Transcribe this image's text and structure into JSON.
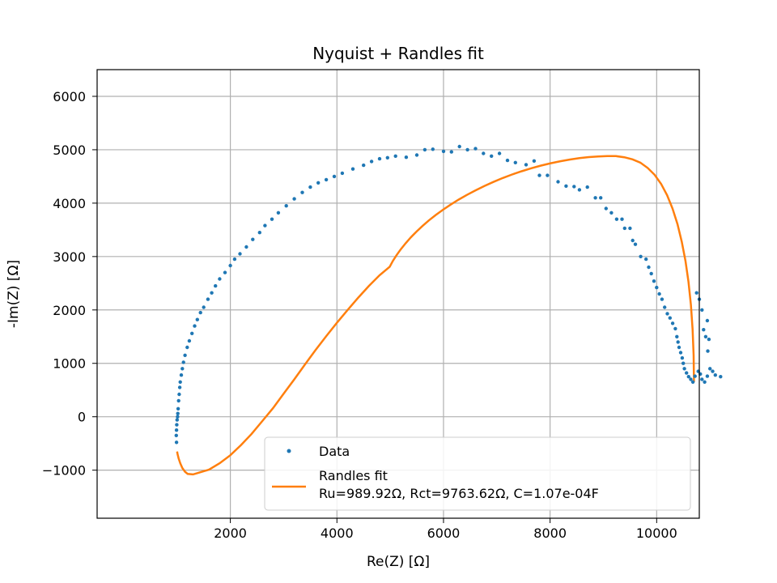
{
  "chart_data": {
    "type": "scatter",
    "title": "Nyquist + Randles fit",
    "xlabel": "Re(Z) [Ω]",
    "ylabel": "-Im(Z) [Ω]",
    "xlim": [
      -500,
      10800
    ],
    "ylim": [
      -1900,
      6500
    ],
    "xticks": [
      2000,
      4000,
      6000,
      8000,
      10000
    ],
    "yticks": [
      -1000,
      0,
      1000,
      2000,
      3000,
      4000,
      5000,
      6000
    ],
    "grid": true,
    "legend_position": "lower right",
    "series": [
      {
        "name": "Data",
        "kind": "scatter",
        "color": "#1f77b4",
        "points": [
          [
            990,
            -480
          ],
          [
            985,
            -350
          ],
          [
            990,
            -250
          ],
          [
            995,
            -150
          ],
          [
            1000,
            -60
          ],
          [
            1010,
            0
          ],
          [
            1015,
            60
          ],
          [
            1020,
            150
          ],
          [
            1030,
            300
          ],
          [
            1040,
            420
          ],
          [
            1050,
            550
          ],
          [
            1060,
            650
          ],
          [
            1080,
            780
          ],
          [
            1100,
            900
          ],
          [
            1120,
            1020
          ],
          [
            1150,
            1150
          ],
          [
            1190,
            1300
          ],
          [
            1230,
            1420
          ],
          [
            1280,
            1560
          ],
          [
            1330,
            1700
          ],
          [
            1380,
            1820
          ],
          [
            1440,
            1950
          ],
          [
            1500,
            2050
          ],
          [
            1580,
            2200
          ],
          [
            1650,
            2320
          ],
          [
            1720,
            2450
          ],
          [
            1800,
            2580
          ],
          [
            1900,
            2700
          ],
          [
            2000,
            2830
          ],
          [
            2080,
            2950
          ],
          [
            2180,
            3050
          ],
          [
            2300,
            3180
          ],
          [
            2420,
            3320
          ],
          [
            2550,
            3450
          ],
          [
            2650,
            3580
          ],
          [
            2780,
            3700
          ],
          [
            2900,
            3820
          ],
          [
            3050,
            3950
          ],
          [
            3200,
            4080
          ],
          [
            3350,
            4200
          ],
          [
            3500,
            4300
          ],
          [
            3650,
            4380
          ],
          [
            3800,
            4440
          ],
          [
            3950,
            4500
          ],
          [
            4100,
            4560
          ],
          [
            4300,
            4640
          ],
          [
            4500,
            4710
          ],
          [
            4650,
            4780
          ],
          [
            4800,
            4830
          ],
          [
            4950,
            4850
          ],
          [
            5100,
            4880
          ],
          [
            5300,
            4860
          ],
          [
            5500,
            4900
          ],
          [
            5650,
            5000
          ],
          [
            5800,
            5010
          ],
          [
            6000,
            4970
          ],
          [
            6150,
            4960
          ],
          [
            6300,
            5060
          ],
          [
            6450,
            5000
          ],
          [
            6600,
            5020
          ],
          [
            6750,
            4930
          ],
          [
            6900,
            4880
          ],
          [
            7050,
            4930
          ],
          [
            7200,
            4800
          ],
          [
            7350,
            4760
          ],
          [
            7550,
            4720
          ],
          [
            7700,
            4790
          ],
          [
            7800,
            4520
          ],
          [
            7950,
            4520
          ],
          [
            8150,
            4400
          ],
          [
            8300,
            4320
          ],
          [
            8450,
            4310
          ],
          [
            8550,
            4250
          ],
          [
            8700,
            4300
          ],
          [
            8850,
            4100
          ],
          [
            8950,
            4100
          ],
          [
            9050,
            3900
          ],
          [
            9150,
            3820
          ],
          [
            9250,
            3700
          ],
          [
            9350,
            3700
          ],
          [
            9400,
            3530
          ],
          [
            9500,
            3530
          ],
          [
            9550,
            3300
          ],
          [
            9600,
            3230
          ],
          [
            9700,
            3000
          ],
          [
            9800,
            2950
          ],
          [
            9850,
            2800
          ],
          [
            9900,
            2680
          ],
          [
            9950,
            2540
          ],
          [
            10000,
            2420
          ],
          [
            10050,
            2300
          ],
          [
            10100,
            2200
          ],
          [
            10150,
            2050
          ],
          [
            10200,
            1930
          ],
          [
            10250,
            1850
          ],
          [
            10300,
            1750
          ],
          [
            10350,
            1650
          ],
          [
            10380,
            1500
          ],
          [
            10400,
            1400
          ],
          [
            10420,
            1300
          ],
          [
            10450,
            1200
          ],
          [
            10480,
            1100
          ],
          [
            10500,
            1000
          ],
          [
            10520,
            900
          ],
          [
            10560,
            820
          ],
          [
            10600,
            750
          ],
          [
            10640,
            700
          ],
          [
            10680,
            650
          ],
          [
            10720,
            760
          ],
          [
            10780,
            850
          ],
          [
            10820,
            800
          ],
          [
            10850,
            700
          ],
          [
            10900,
            650
          ],
          [
            10950,
            760
          ],
          [
            11000,
            900
          ],
          [
            11050,
            850
          ],
          [
            11100,
            780
          ],
          [
            11200,
            750
          ],
          [
            10960,
            1230
          ],
          [
            10980,
            1450
          ],
          [
            10920,
            1500
          ],
          [
            10880,
            1630
          ],
          [
            10950,
            1800
          ],
          [
            10850,
            2000
          ],
          [
            10800,
            2200
          ],
          [
            10750,
            2320
          ]
        ]
      },
      {
        "name": "Randles fit",
        "legend_line2": "Ru=989.92Ω, Rct=9763.62Ω, C=1.07e-04F",
        "kind": "line",
        "color": "#ff7f0e",
        "Ru": 989.92,
        "Rct": 9763.62,
        "x": [
          10700,
          10693,
          10674,
          10642,
          10597,
          10540,
          10470,
          10390,
          10298,
          10195,
          10083,
          9962,
          9831,
          9693,
          9547,
          9394,
          9235,
          9071,
          8902,
          8729,
          8552,
          8374,
          8193,
          8011,
          7829,
          7647,
          7466,
          7287,
          7110,
          6936,
          6766,
          6600,
          6439,
          6284,
          6134,
          5991,
          5855,
          5726,
          5605,
          5491,
          5386,
          5289,
          5200,
          5121,
          5050,
          4990,
          4800,
          4600,
          4400,
          4200,
          4000,
          3800,
          3600,
          3400,
          3200,
          3000,
          2800,
          2600,
          2400,
          2200,
          2000,
          1800,
          1600,
          1400,
          1300,
          1200,
          1150,
          1100,
          1060,
          1030,
          1010,
          1000
        ],
        "y": [
          650,
          1150,
          1640,
          2100,
          2530,
          2920,
          3280,
          3610,
          3900,
          4150,
          4360,
          4530,
          4660,
          4760,
          4820,
          4860,
          4880,
          4881,
          4875,
          4862,
          4843,
          4817,
          4785,
          4747,
          4703,
          4653,
          4597,
          4536,
          4469,
          4397,
          4321,
          4240,
          4155,
          4066,
          3973,
          3877,
          3778,
          3676,
          3572,
          3466,
          3358,
          3249,
          3139,
          3029,
          2918,
          2808,
          2650,
          2450,
          2230,
          2000,
          1760,
          1510,
          1250,
          980,
          700,
          430,
          160,
          -80,
          -320,
          -530,
          -720,
          -870,
          -990,
          -1050,
          -1080,
          -1070,
          -1030,
          -960,
          -870,
          -780,
          -700,
          -650
        ]
      }
    ]
  }
}
